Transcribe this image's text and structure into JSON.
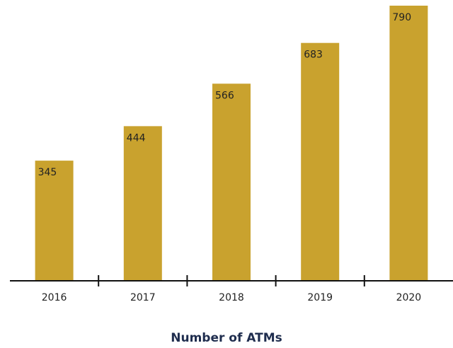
{
  "chart_data": {
    "type": "bar",
    "title": "Number of ATMs",
    "categories": [
      "2016",
      "2017",
      "2018",
      "2019",
      "2020"
    ],
    "values": [
      345,
      444,
      566,
      683,
      790
    ],
    "color": "#c9a22e"
  }
}
